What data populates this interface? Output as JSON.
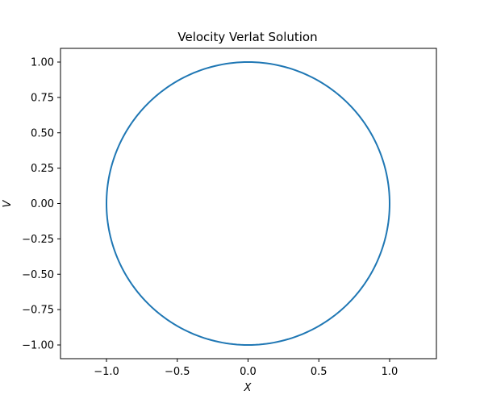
{
  "chart_data": {
    "type": "line",
    "title": "Velocity Verlat Solution",
    "xlabel": "X",
    "ylabel": "V",
    "xlim": [
      -1.3,
      1.3
    ],
    "ylim": [
      -1.1,
      1.1
    ],
    "grid": false,
    "line_color": "#1f77b4",
    "xticks": [
      -1.0,
      -0.5,
      0.0,
      0.5,
      1.0
    ],
    "xtick_labels": [
      "−1.0",
      "−0.5",
      "0.0",
      "0.5",
      "1.0"
    ],
    "yticks": [
      1.0,
      0.75,
      0.5,
      0.25,
      0.0,
      -0.25,
      -0.5,
      -0.75,
      -1.0
    ],
    "ytick_labels": [
      "1.00",
      "0.75",
      "0.50",
      "0.25",
      "0.00",
      "−0.25",
      "−0.50",
      "−0.75",
      "−1.00"
    ],
    "series": [
      {
        "x": [
          1.0,
          0.9659,
          0.866,
          0.7071,
          0.5,
          0.2588,
          0.0,
          -0.2588,
          -0.5,
          -0.7071,
          -0.866,
          -0.9659,
          -1.0,
          -0.9659,
          -0.866,
          -0.7071,
          -0.5,
          -0.2588,
          0.0,
          0.2588,
          0.5,
          0.7071,
          0.866,
          0.9659,
          1.0
        ],
        "y": [
          0.0,
          0.2588,
          0.5,
          0.7071,
          0.866,
          0.9659,
          1.0,
          0.9659,
          0.866,
          0.7071,
          0.5,
          0.2588,
          0.0,
          -0.2588,
          -0.5,
          -0.7071,
          -0.866,
          -0.9659,
          -1.0,
          -0.9659,
          -0.866,
          -0.7071,
          -0.5,
          -0.2588,
          0.0
        ]
      }
    ]
  }
}
